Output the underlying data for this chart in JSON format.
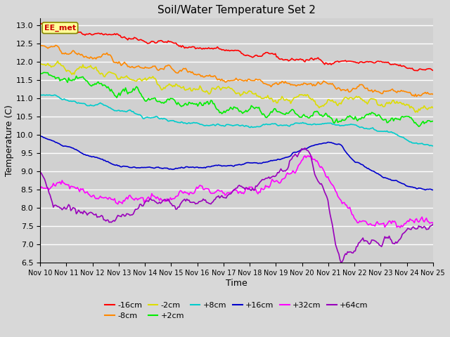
{
  "title": "Soil/Water Temperature Set 2",
  "xlabel": "Time",
  "ylabel": "Temperature (C)",
  "ylim": [
    6.5,
    13.2
  ],
  "xlim": [
    0,
    15
  ],
  "fig_bg": "#d8d8d8",
  "plot_bg": "#d0d0d0",
  "annotation_text": "EE_met",
  "annotation_color": "#cc0000",
  "annotation_bg": "#ffff99",
  "series": [
    {
      "label": "-16cm",
      "color": "#ff0000"
    },
    {
      "label": "-8cm",
      "color": "#ff8800"
    },
    {
      "label": "-2cm",
      "color": "#dddd00"
    },
    {
      "label": "+2cm",
      "color": "#00ee00"
    },
    {
      "label": "+8cm",
      "color": "#00cccc"
    },
    {
      "label": "+16cm",
      "color": "#0000cc"
    },
    {
      "label": "+32cm",
      "color": "#ff00ff"
    },
    {
      "label": "+64cm",
      "color": "#9900bb"
    }
  ],
  "xticks": [
    0,
    1,
    2,
    3,
    4,
    5,
    6,
    7,
    8,
    9,
    10,
    11,
    12,
    13,
    14,
    15
  ],
  "xticklabels": [
    "Nov 10",
    "Nov 11",
    "Nov 12",
    "Nov 13",
    "Nov 14",
    "Nov 15",
    "Nov 16",
    "Nov 17",
    "Nov 18",
    "Nov 19",
    "Nov 20",
    "Nov 21",
    "Nov 22",
    "Nov 23",
    "Nov 24",
    "Nov 25"
  ],
  "yticks": [
    6.5,
    7.0,
    7.5,
    8.0,
    8.5,
    9.0,
    9.5,
    10.0,
    10.5,
    11.0,
    11.5,
    12.0,
    12.5,
    13.0
  ]
}
